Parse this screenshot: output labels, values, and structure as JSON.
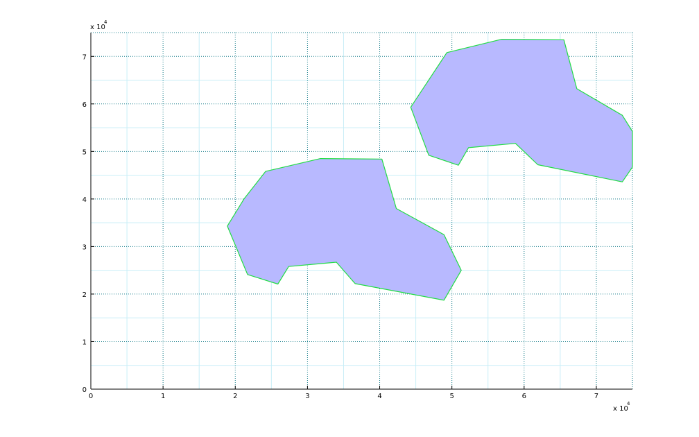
{
  "chart_data": {
    "type": "area",
    "title": "",
    "xlabel": "",
    "ylabel": "",
    "xlim": [
      0,
      75000
    ],
    "ylim": [
      0,
      75000
    ],
    "x_ticks": [
      "0",
      "1",
      "2",
      "3",
      "4",
      "5",
      "6",
      "7"
    ],
    "y_ticks": [
      "0",
      "1",
      "2",
      "3",
      "4",
      "5",
      "6",
      "7"
    ],
    "x_multiplier": "x 10",
    "y_multiplier": "x 10",
    "x_exponent": "4",
    "y_exponent": "4",
    "grid": true,
    "minor_grid": true,
    "colors": {
      "fill": "#b8b9ff",
      "edge": "#22dd44",
      "major_grid": "#1a7f8c",
      "minor_grid": "#c8eef7",
      "axis": "#000000"
    },
    "series": [
      {
        "x": [
          24200,
          31800,
          40300,
          42300,
          48900,
          51300,
          48900,
          36600,
          34000,
          27400,
          25900,
          21700,
          18900,
          21200,
          24200
        ],
        "y": [
          45800,
          48500,
          48400,
          38000,
          32500,
          25000,
          18700,
          22200,
          26700,
          25800,
          22100,
          24100,
          34300,
          40000,
          45800
        ]
      },
      {
        "x": [
          49300,
          56900,
          65500,
          67300,
          73600,
          75000,
          75000,
          73600,
          61900,
          58800,
          52300,
          50900,
          46800,
          44300,
          49300
        ],
        "y": [
          70800,
          73600,
          73500,
          63200,
          57600,
          54200,
          46700,
          43600,
          47200,
          51700,
          50800,
          47100,
          49200,
          59300,
          70800
        ]
      }
    ]
  }
}
